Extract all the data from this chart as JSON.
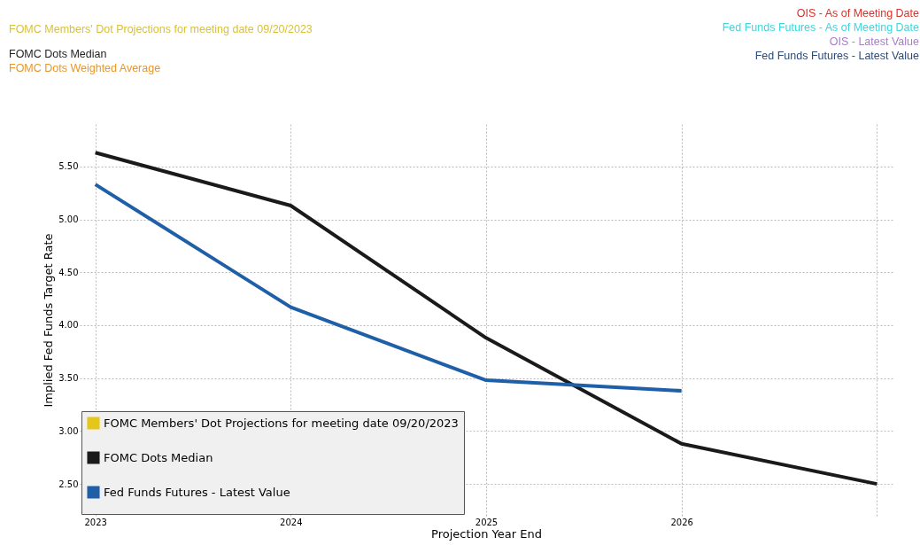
{
  "chart_data": {
    "type": "line",
    "annotations": [
      "FOMC Members' Dot Projections for meeting date 09/20/2023",
      "FOMC Dots Median",
      "FOMC Dots Weighted Average",
      "OIS - As of Meeting Date",
      "Fed Funds Futures - As of Meeting Date",
      "OIS - Latest Value",
      "Fed Funds Futures - Latest Value"
    ],
    "xlabel": "Projection Year End",
    "ylabel": "Implied Fed Funds Target Rate",
    "categories": [
      "2023",
      "2024",
      "2025",
      "2026",
      null
    ],
    "series": [
      {
        "name": "FOMC Members' Dot Projections for meeting date 09/20/2023",
        "color": "#e6c619",
        "values": [
          null,
          null,
          null,
          null,
          null
        ]
      },
      {
        "name": "FOMC Dots Median",
        "color": "#1a1a1a",
        "values": [
          5.63,
          5.13,
          3.88,
          2.88,
          2.5
        ]
      },
      {
        "name": "Fed Funds Futures - Latest Value",
        "color": "#1f5fa8",
        "values": [
          5.33,
          4.17,
          3.48,
          3.38,
          null
        ]
      }
    ],
    "ylim": [
      2.2,
      5.9
    ],
    "yticks": [
      {
        "value": 2.5,
        "label": "2.50"
      },
      {
        "value": 3.0,
        "label": "3.00"
      },
      {
        "value": 3.5,
        "label": "3.50"
      },
      {
        "value": 4.0,
        "label": "4.00"
      },
      {
        "value": 4.5,
        "label": "4.50"
      },
      {
        "value": 5.0,
        "label": "5.00"
      },
      {
        "value": 5.5,
        "label": "5.50"
      }
    ],
    "grid": true,
    "legend": "bottom left",
    "marker": "none",
    "line_style": "solid"
  }
}
